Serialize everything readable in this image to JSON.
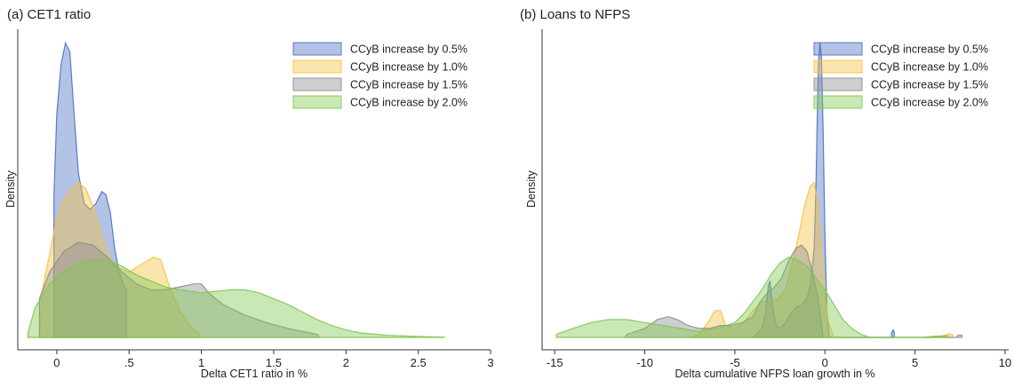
{
  "chart_data": [
    {
      "type": "area",
      "title": "(a) CET1 ratio",
      "xlabel": "Delta CET1 ratio in %",
      "ylabel": "Density",
      "xlim": [
        -0.27,
        3.0
      ],
      "ylim": [
        0,
        1
      ],
      "xticks": [
        {
          "v": 0,
          "label": "0"
        },
        {
          "v": 0.5,
          "label": ".5"
        },
        {
          "v": 1,
          "label": "1"
        },
        {
          "v": 1.5,
          "label": "1.5"
        },
        {
          "v": 2,
          "label": "2"
        },
        {
          "v": 2.5,
          "label": "2.5"
        },
        {
          "v": 3,
          "label": "3"
        }
      ],
      "grid": false,
      "legend_position": "top-right",
      "series": [
        {
          "name": "CCyB increase by 0.5%",
          "color": "#4a6fc1",
          "points": [
            [
              -0.02,
              0
            ],
            [
              -0.02,
              0.48
            ],
            [
              0.0,
              0.75
            ],
            [
              0.03,
              0.92
            ],
            [
              0.06,
              0.99
            ],
            [
              0.09,
              0.96
            ],
            [
              0.12,
              0.75
            ],
            [
              0.15,
              0.55
            ],
            [
              0.19,
              0.45
            ],
            [
              0.23,
              0.43
            ],
            [
              0.27,
              0.45
            ],
            [
              0.31,
              0.49
            ],
            [
              0.34,
              0.48
            ],
            [
              0.37,
              0.42
            ],
            [
              0.4,
              0.3
            ],
            [
              0.43,
              0.22
            ],
            [
              0.46,
              0.18
            ],
            [
              0.48,
              0.16
            ],
            [
              0.48,
              0
            ]
          ]
        },
        {
          "name": "CCyB increase by 1.0%",
          "color": "#f6c23e",
          "points": [
            [
              -0.12,
              0
            ],
            [
              -0.1,
              0.16
            ],
            [
              -0.05,
              0.28
            ],
            [
              0.0,
              0.4
            ],
            [
              0.05,
              0.46
            ],
            [
              0.1,
              0.5
            ],
            [
              0.15,
              0.52
            ],
            [
              0.2,
              0.5
            ],
            [
              0.25,
              0.44
            ],
            [
              0.3,
              0.36
            ],
            [
              0.35,
              0.28
            ],
            [
              0.4,
              0.24
            ],
            [
              0.5,
              0.22
            ],
            [
              0.6,
              0.25
            ],
            [
              0.67,
              0.27
            ],
            [
              0.72,
              0.26
            ],
            [
              0.78,
              0.17
            ],
            [
              0.85,
              0.09
            ],
            [
              0.92,
              0.04
            ],
            [
              0.98,
              0.015
            ],
            [
              0.99,
              0
            ]
          ]
        },
        {
          "name": "CCyB increase by 1.5%",
          "color": "#8c8c8c",
          "points": [
            [
              -0.12,
              0
            ],
            [
              -0.12,
              0.13
            ],
            [
              -0.05,
              0.22
            ],
            [
              0.05,
              0.29
            ],
            [
              0.15,
              0.32
            ],
            [
              0.25,
              0.31
            ],
            [
              0.35,
              0.27
            ],
            [
              0.45,
              0.22
            ],
            [
              0.55,
              0.18
            ],
            [
              0.65,
              0.16
            ],
            [
              0.75,
              0.16
            ],
            [
              0.85,
              0.17
            ],
            [
              0.95,
              0.18
            ],
            [
              1.0,
              0.18
            ],
            [
              1.05,
              0.15
            ],
            [
              1.15,
              0.11
            ],
            [
              1.3,
              0.075
            ],
            [
              1.45,
              0.05
            ],
            [
              1.6,
              0.03
            ],
            [
              1.7,
              0.02
            ],
            [
              1.8,
              0.01
            ],
            [
              1.82,
              0
            ]
          ]
        },
        {
          "name": "CCyB increase by 2.0%",
          "color": "#7ec850",
          "points": [
            [
              -0.2,
              0
            ],
            [
              -0.2,
              0.015
            ],
            [
              -0.15,
              0.1
            ],
            [
              -0.05,
              0.18
            ],
            [
              0.05,
              0.22
            ],
            [
              0.15,
              0.25
            ],
            [
              0.25,
              0.26
            ],
            [
              0.35,
              0.26
            ],
            [
              0.45,
              0.24
            ],
            [
              0.55,
              0.21
            ],
            [
              0.65,
              0.19
            ],
            [
              0.75,
              0.17
            ],
            [
              0.85,
              0.16
            ],
            [
              1.0,
              0.15
            ],
            [
              1.1,
              0.155
            ],
            [
              1.2,
              0.16
            ],
            [
              1.3,
              0.16
            ],
            [
              1.4,
              0.15
            ],
            [
              1.5,
              0.13
            ],
            [
              1.6,
              0.11
            ],
            [
              1.7,
              0.085
            ],
            [
              1.8,
              0.06
            ],
            [
              1.9,
              0.04
            ],
            [
              2.0,
              0.025
            ],
            [
              2.1,
              0.015
            ],
            [
              2.3,
              0.007
            ],
            [
              2.5,
              0.003
            ],
            [
              2.68,
              0.001
            ],
            [
              2.68,
              0
            ]
          ]
        }
      ]
    },
    {
      "type": "area",
      "title": "(b) Loans to NFPS",
      "xlabel": "Delta cumulative NFPS loan growth in %",
      "ylabel": "Density",
      "xlim": [
        -15.7,
        10.2
      ],
      "ylim": [
        0,
        1
      ],
      "xticks": [
        {
          "v": -15,
          "label": "-15"
        },
        {
          "v": -10,
          "label": "-10"
        },
        {
          "v": -5,
          "label": "-5"
        },
        {
          "v": 0,
          "label": "0"
        },
        {
          "v": 5,
          "label": "5"
        },
        {
          "v": 10,
          "label": "10"
        }
      ],
      "grid": false,
      "legend_position": "top-right",
      "series": [
        {
          "name": "CCyB increase by 0.5%",
          "color": "#4a6fc1",
          "points": [
            [
              -4.0,
              0
            ],
            [
              -3.8,
              0.01
            ],
            [
              -3.5,
              0.03
            ],
            [
              -3.3,
              0.08
            ],
            [
              -3.15,
              0.17
            ],
            [
              -3.05,
              0.19
            ],
            [
              -2.9,
              0.1
            ],
            [
              -2.7,
              0.04
            ],
            [
              -2.5,
              0.03
            ],
            [
              -2.2,
              0.05
            ],
            [
              -1.9,
              0.08
            ],
            [
              -1.6,
              0.1
            ],
            [
              -1.3,
              0.11
            ],
            [
              -1.0,
              0.13
            ],
            [
              -0.8,
              0.18
            ],
            [
              -0.6,
              0.3
            ],
            [
              -0.5,
              0.5
            ],
            [
              -0.42,
              0.75
            ],
            [
              -0.35,
              0.93
            ],
            [
              -0.28,
              0.99
            ],
            [
              -0.2,
              0.95
            ],
            [
              -0.1,
              0.7
            ],
            [
              0.0,
              0.35
            ],
            [
              0.1,
              0.1
            ],
            [
              0.2,
              0.02
            ],
            [
              0.25,
              0
            ],
            [
              3.7,
              0
            ],
            [
              3.7,
              0.015
            ],
            [
              3.8,
              0.025
            ],
            [
              3.85,
              0.015
            ],
            [
              3.85,
              0
            ]
          ]
        },
        {
          "name": "CCyB increase by 1.0%",
          "color": "#f6c23e",
          "points": [
            [
              -7.5,
              0
            ],
            [
              -7.0,
              0.01
            ],
            [
              -6.5,
              0.05
            ],
            [
              -6.1,
              0.09
            ],
            [
              -5.8,
              0.09
            ],
            [
              -5.5,
              0.04
            ],
            [
              -5.0,
              0.03
            ],
            [
              -4.5,
              0.05
            ],
            [
              -4.0,
              0.09
            ],
            [
              -3.5,
              0.12
            ],
            [
              -3.0,
              0.12
            ],
            [
              -2.6,
              0.13
            ],
            [
              -2.2,
              0.16
            ],
            [
              -1.8,
              0.25
            ],
            [
              -1.4,
              0.36
            ],
            [
              -1.1,
              0.45
            ],
            [
              -0.8,
              0.51
            ],
            [
              -0.6,
              0.52
            ],
            [
              -0.4,
              0.45
            ],
            [
              -0.2,
              0.3
            ],
            [
              0.0,
              0.14
            ],
            [
              0.2,
              0.05
            ],
            [
              0.4,
              0.015
            ],
            [
              0.5,
              0
            ],
            [
              6.0,
              0
            ],
            [
              6.5,
              0.005
            ],
            [
              6.9,
              0.012
            ],
            [
              7.1,
              0.008
            ],
            [
              7.1,
              0
            ]
          ]
        },
        {
          "name": "CCyB increase by 1.5%",
          "color": "#8c8c8c",
          "points": [
            [
              -11.1,
              0
            ],
            [
              -11.0,
              0.01
            ],
            [
              -10.0,
              0.03
            ],
            [
              -9.3,
              0.06
            ],
            [
              -8.7,
              0.07
            ],
            [
              -8.2,
              0.06
            ],
            [
              -7.6,
              0.04
            ],
            [
              -7.0,
              0.03
            ],
            [
              -6.4,
              0.03
            ],
            [
              -5.8,
              0.04
            ],
            [
              -5.2,
              0.04
            ],
            [
              -4.6,
              0.05
            ],
            [
              -4.0,
              0.07
            ],
            [
              -3.6,
              0.12
            ],
            [
              -3.2,
              0.15
            ],
            [
              -2.8,
              0.17
            ],
            [
              -2.4,
              0.2
            ],
            [
              -2.0,
              0.26
            ],
            [
              -1.6,
              0.3
            ],
            [
              -1.3,
              0.31
            ],
            [
              -1.0,
              0.29
            ],
            [
              -0.7,
              0.22
            ],
            [
              -0.4,
              0.14
            ],
            [
              -0.2,
              0.05
            ],
            [
              -0.1,
              0
            ],
            [
              7.3,
              0
            ],
            [
              7.4,
              0.008
            ],
            [
              7.6,
              0.008
            ],
            [
              7.6,
              0
            ]
          ]
        },
        {
          "name": "CCyB increase by 2.0%",
          "color": "#7ec850",
          "points": [
            [
              -14.9,
              0
            ],
            [
              -14.9,
              0.01
            ],
            [
              -14.0,
              0.03
            ],
            [
              -13.0,
              0.05
            ],
            [
              -12.0,
              0.06
            ],
            [
              -11.0,
              0.06
            ],
            [
              -10.0,
              0.05
            ],
            [
              -9.0,
              0.04
            ],
            [
              -8.0,
              0.03
            ],
            [
              -7.0,
              0.02
            ],
            [
              -6.0,
              0.03
            ],
            [
              -5.0,
              0.05
            ],
            [
              -4.5,
              0.08
            ],
            [
              -4.0,
              0.12
            ],
            [
              -3.5,
              0.16
            ],
            [
              -3.0,
              0.21
            ],
            [
              -2.5,
              0.25
            ],
            [
              -2.0,
              0.27
            ],
            [
              -1.5,
              0.26
            ],
            [
              -1.0,
              0.24
            ],
            [
              -0.5,
              0.2
            ],
            [
              0.0,
              0.16
            ],
            [
              0.5,
              0.11
            ],
            [
              1.0,
              0.06
            ],
            [
              1.5,
              0.03
            ],
            [
              2.0,
              0.01
            ],
            [
              2.5,
              0
            ],
            [
              5.5,
              0
            ],
            [
              6.0,
              0.004
            ],
            [
              6.8,
              0.005
            ],
            [
              6.8,
              0
            ]
          ]
        }
      ]
    }
  ]
}
